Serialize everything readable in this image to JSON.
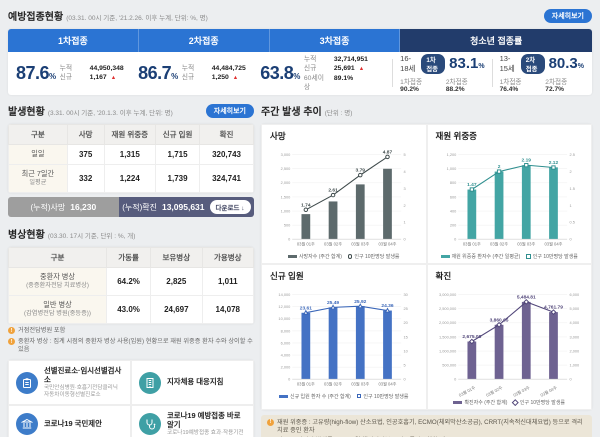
{
  "colors": {
    "accent_blue": "#2b74d3",
    "navy": "#1b3f75",
    "youth_tab_navy": "#223c6b",
    "increase_red": "#e03131",
    "cumulative_gray": "#9e9e9e",
    "cumulative_navy": "#575c7d",
    "note_orange": "#f0a23c",
    "link_blue": "#3d7cc9",
    "link_teal": "#3fa0a5"
  },
  "vaccination": {
    "title": "예방접종현황",
    "subtitle": "(03.31. 00시 기준, '21.2.26. 이후 누계, 단위: %, 명)",
    "detail_button": "자세히보기",
    "tabs": [
      {
        "label": "1차접종"
      },
      {
        "label": "2차접종"
      },
      {
        "label": "3차접종"
      },
      {
        "label": "청소년 접종률"
      }
    ],
    "doses": [
      {
        "percent": "87.6",
        "unit": "%",
        "rows": [
          {
            "label": "누적",
            "value": "44,950,348",
            "up": ""
          },
          {
            "label": "신규",
            "value": "1,167",
            "up": "▲"
          }
        ]
      },
      {
        "percent": "86.7",
        "unit": "%",
        "rows": [
          {
            "label": "누적",
            "value": "44,484,725",
            "up": ""
          },
          {
            "label": "신규",
            "value": "1,250",
            "up": "▲"
          }
        ]
      },
      {
        "percent": "63.8",
        "unit": "%",
        "rows": [
          {
            "label": "누적",
            "value": "32,714,951",
            "up": ""
          },
          {
            "label": "신규",
            "value": "25,691",
            "up": "▲"
          },
          {
            "label": "60세이상",
            "value": "89.1%",
            "up": ""
          }
        ]
      }
    ],
    "youth": [
      {
        "age": "16-18세",
        "badge": "1차접종",
        "percent": "83.1",
        "unit": "%",
        "sub1_label": "1차접종",
        "sub1_value": "90.2%",
        "sub2_label": "2차접종",
        "sub2_value": "88.2%"
      },
      {
        "age": "13-15세",
        "badge": "2차접종",
        "percent": "80.3",
        "unit": "%",
        "sub1_label": "1차접종",
        "sub1_value": "76.4%",
        "sub2_label": "2차접종",
        "sub2_value": "72.7%"
      }
    ]
  },
  "occurrence": {
    "title": "발생현황",
    "subtitle": "(3.31. 00시 기준, '20.1.3. 이후 누계, 단위: 명)",
    "detail_button": "자세히보기",
    "table": {
      "headers": [
        "구분",
        "사망",
        "재원 위중증",
        "신규 입원",
        "확진"
      ],
      "rows": [
        {
          "label": "일일",
          "values": [
            "375",
            "1,315",
            "1,715",
            "320,743"
          ]
        },
        {
          "label": "최근 7일간",
          "label2": "일평균",
          "values": [
            "332",
            "1,224",
            "1,739",
            "324,741"
          ]
        }
      ]
    },
    "cumulative": {
      "death_label": "(누적)사망",
      "death_value": "16,230",
      "confirmed_label": "(누적)확진",
      "confirmed_value": "13,095,631",
      "download_label": "다운로드 ↓"
    }
  },
  "beds": {
    "title": "병상현황",
    "subtitle": "(03.30. 17시 기준, 단위 : %, 개)",
    "table": {
      "headers": [
        "구분",
        "가동률",
        "보유병상",
        "가용병상"
      ],
      "rows": [
        {
          "label": "중환자 병상",
          "sublabel": "(중증환자전담 치료병상)",
          "values": [
            "64.2%",
            "2,825",
            "1,011"
          ]
        },
        {
          "label": "일반 병상",
          "sublabel": "(감염병전담 병원(중등증))",
          "values": [
            "43.0%",
            "24,697",
            "14,078"
          ]
        }
      ]
    },
    "notes": [
      "거점전담병원 포함",
      "중환자 병상 : 집계 시점의 중환자 병상 사용(입원) 현황으로 재원 위중증 환자 수와 상이할 수 있음"
    ]
  },
  "quick_links": [
    {
      "title": "선별진료소·임시선별검사소",
      "sub": "국민안심병원·호흡기전담클리닉 자동차이동형선별진료소",
      "icon": "clipboard-icon",
      "color": "#3d7cc9"
    },
    {
      "title": "지자체용 대응지침",
      "sub": "",
      "icon": "building-icon",
      "color": "#3fa0a5"
    },
    {
      "title": "코로나19 국민제안",
      "sub": "",
      "icon": "government-icon",
      "color": "#3d7cc9"
    },
    {
      "title": "코로나19 예방접종 바로알기",
      "sub": "코로나19예방접종 효과·작용기전",
      "icon": "stethoscope-icon",
      "color": "#3fa0a5"
    }
  ],
  "weekly": {
    "title": "주간 발생 추이",
    "unit": "(단위 : 명)",
    "notes": [
      "재원 위중증 : 고유량(high-flow) 산소요법, 인공호흡기, ECMO(체외막산소공급), CRRT(지속적신대체요법) 등으로 격리 치료 중인 환자",
      "인구 10만명당 발생률 : '21.12월 행정안전부 주민등록인구현황 기준"
    ]
  },
  "chart_data": [
    {
      "type": "bar-line",
      "title": "사망",
      "categories": [
        "03월 01주",
        "03월 02주",
        "03월 03주",
        "03월 04주"
      ],
      "bar_series": {
        "name": "사망자수 (주간 합계)",
        "values": [
          890,
          1340,
          1945,
          2500
        ],
        "color": "#5d6a6c"
      },
      "line_series": {
        "name": "인구 10만명당 발생률",
        "values": [
          1.74,
          2.61,
          3.79,
          4.87
        ],
        "labels": [
          "1.74",
          "2.61",
          "3.79",
          "4.87"
        ],
        "color": "#3e4a4b",
        "marker": "circle"
      },
      "left_axis": {
        "min": 0,
        "max": 3000,
        "ticks": [
          "3,000",
          "2,500",
          "2,000",
          "1,500",
          "1,000",
          "500",
          "0"
        ]
      },
      "right_axis": {
        "min": 0,
        "max": 5,
        "ticks": [
          "5",
          "4",
          "3",
          "2",
          "1",
          "0"
        ]
      },
      "rotate_x_labels": false,
      "legend_position": "bottom"
    },
    {
      "type": "bar-line",
      "title": "재원 위중증",
      "categories": [
        "03월 01주",
        "03월 02주",
        "03월 03주",
        "03월 04주"
      ],
      "bar_series": {
        "name": "재원 위중증 환자수 (주간 일평균)",
        "values": [
          705,
          960,
          1050,
          1020
        ],
        "color": "#43a5a4"
      },
      "line_series": {
        "name": "인구 10만명당 발생률",
        "values": [
          1.47,
          2,
          2.19,
          2.12
        ],
        "labels": [
          "1.47",
          "2",
          "2.19",
          "2.12"
        ],
        "color": "#2f8f8f",
        "marker": "square"
      },
      "left_axis": {
        "min": 0,
        "max": 1200,
        "ticks": [
          "1,200",
          "1,000",
          "800",
          "600",
          "400",
          "200",
          "0"
        ]
      },
      "right_axis": {
        "min": 0,
        "max": 2.5,
        "ticks": [
          "2.5",
          "2",
          "1.5",
          "1",
          "0.5",
          "0"
        ]
      },
      "rotate_x_labels": false,
      "legend_position": "bottom"
    },
    {
      "type": "bar-line",
      "title": "신규 입원",
      "categories": [
        "03월 01주",
        "03월 02주",
        "03월 03주",
        "03월 04주"
      ],
      "bar_series": {
        "name": "신규 입원 환자 수 (주간 합계)",
        "values": [
          11000,
          11900,
          12100,
          11370
        ],
        "color": "#4472c4"
      },
      "line_series": {
        "name": "인구 10만명당 발생률",
        "values": [
          23.61,
          25.49,
          25.92,
          24.36
        ],
        "labels": [
          "23.61",
          "25.49",
          "25.92",
          "24.36"
        ],
        "color": "#3a66b8",
        "marker": "triangle"
      },
      "left_axis": {
        "min": 0,
        "max": 14000,
        "ticks": [
          "14,000",
          "12,000",
          "10,000",
          "8,000",
          "6,000",
          "4,000",
          "2,000",
          "0"
        ]
      },
      "right_axis": {
        "min": 0,
        "max": 30,
        "ticks": [
          "30",
          "25",
          "20",
          "15",
          "10",
          "5",
          "0"
        ]
      },
      "rotate_x_labels": false,
      "legend_position": "bottom"
    },
    {
      "type": "bar-line",
      "title": "확진",
      "categories": [
        "03월 01주",
        "03월 02주",
        "03월 03주",
        "03월 04주"
      ],
      "bar_series": {
        "name": "확진자수 (주간 합계)",
        "values": [
          1337500,
          1930300,
          2742400,
          2380900
        ],
        "color": "#6e6291"
      },
      "line_series": {
        "name": "인구 10만명당 발생률",
        "values": [
          2675.08,
          3860.65,
          5484.81,
          4761.79
        ],
        "labels": [
          "2,675.08",
          "3,860.65",
          "5,484.81",
          "4,761.79"
        ],
        "color": "#52477a",
        "marker": "diamond"
      },
      "left_axis": {
        "min": 0,
        "max": 3000000,
        "ticks": [
          "3,000,000",
          "2,500,000",
          "2,000,000",
          "1,500,000",
          "1,000,000",
          "500,000",
          "0"
        ]
      },
      "right_axis": {
        "min": 0,
        "max": 6000,
        "ticks": [
          "6,000",
          "5,000",
          "4,000",
          "3,000",
          "2,000",
          "1,000",
          "0"
        ]
      },
      "rotate_x_labels": true,
      "legend_position": "bottom"
    }
  ]
}
